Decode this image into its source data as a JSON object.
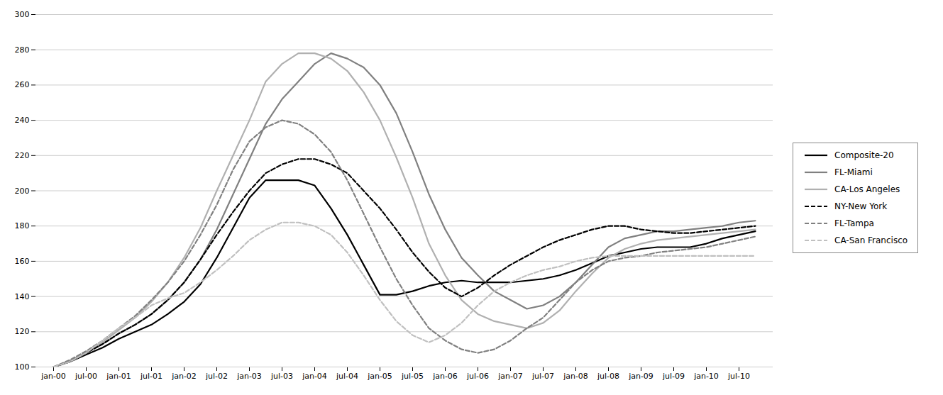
{
  "chart_data": {
    "type": "line",
    "categories": [
      "jan-00",
      null,
      "jul-00",
      null,
      "jan-01",
      null,
      "jul-01",
      null,
      "jan-02",
      null,
      "jul-02",
      null,
      "jan-03",
      null,
      "jul-03",
      null,
      "jan-04",
      null,
      "jul-04",
      null,
      "jan-05",
      null,
      "jul-05",
      null,
      "jan-06",
      null,
      "jul-06",
      null,
      "jan-07",
      null,
      "jul-07",
      null,
      "jan-08",
      null,
      "jul-08",
      null,
      "jan-09",
      null,
      "jul-09",
      null,
      "jan-10",
      null,
      "jul-10",
      null
    ],
    "series": [
      {
        "name": "Composite-20",
        "color": "#000000",
        "line_style": "solid",
        "values": [
          100,
          103,
          107,
          111,
          116,
          120,
          124,
          130,
          137,
          147,
          162,
          179,
          196,
          206,
          206,
          206,
          203,
          190,
          175,
          158,
          141,
          141,
          143,
          146,
          148,
          149,
          148,
          148,
          148,
          149,
          150,
          152,
          155,
          159,
          163,
          165,
          167,
          168,
          168,
          168,
          170,
          173,
          175,
          177
        ]
      },
      {
        "name": "FL-Miami",
        "color": "#808080",
        "line_style": "solid",
        "values": [
          100,
          103,
          108,
          113,
          119,
          124,
          130,
          138,
          148,
          161,
          178,
          198,
          218,
          238,
          252,
          262,
          272,
          278,
          275,
          270,
          260,
          244,
          222,
          198,
          178,
          162,
          152,
          143,
          138,
          133,
          135,
          140,
          148,
          158,
          168,
          173,
          175,
          177,
          177,
          178,
          179,
          180,
          182,
          183
        ]
      },
      {
        "name": "CA-Los Angeles",
        "color": "#b0b0b0",
        "line_style": "solid",
        "values": [
          100,
          103,
          108,
          114,
          121,
          128,
          137,
          148,
          162,
          179,
          200,
          220,
          240,
          262,
          272,
          278,
          278,
          275,
          268,
          256,
          240,
          219,
          196,
          170,
          152,
          138,
          130,
          126,
          124,
          122,
          125,
          132,
          143,
          153,
          162,
          167,
          170,
          172,
          173,
          174,
          175,
          176,
          177,
          178
        ]
      },
      {
        "name": "NY-New York",
        "color": "#000000",
        "line_style": "dashed",
        "values": [
          100,
          103,
          108,
          113,
          119,
          124,
          130,
          138,
          148,
          161,
          175,
          188,
          200,
          210,
          215,
          218,
          218,
          215,
          210,
          200,
          190,
          178,
          165,
          154,
          145,
          140,
          145,
          152,
          158,
          163,
          168,
          172,
          175,
          178,
          180,
          180,
          178,
          177,
          176,
          176,
          177,
          178,
          179,
          180
        ]
      },
      {
        "name": "FL-Tampa",
        "color": "#808080",
        "line_style": "dashed",
        "values": [
          100,
          104,
          109,
          115,
          122,
          129,
          138,
          148,
          160,
          175,
          192,
          212,
          228,
          236,
          240,
          238,
          232,
          222,
          206,
          187,
          168,
          150,
          135,
          122,
          115,
          110,
          108,
          110,
          115,
          122,
          128,
          138,
          148,
          155,
          160,
          162,
          163,
          165,
          166,
          167,
          168,
          170,
          172,
          174
        ]
      },
      {
        "name": "CA-San Francisco",
        "color": "#c0c0c0",
        "line_style": "dashed",
        "values": [
          100,
          103,
          108,
          115,
          122,
          128,
          135,
          139,
          142,
          148,
          155,
          163,
          172,
          178,
          182,
          182,
          180,
          175,
          165,
          152,
          138,
          126,
          118,
          114,
          118,
          125,
          135,
          143,
          148,
          152,
          155,
          157,
          160,
          162,
          163,
          163,
          163,
          163,
          163,
          163,
          163,
          163,
          163,
          163
        ]
      }
    ],
    "ylim": [
      100,
      300
    ],
    "yticks": [
      100,
      120,
      140,
      160,
      180,
      200,
      220,
      240,
      260,
      280,
      300
    ],
    "grid": true,
    "legend": "right"
  }
}
